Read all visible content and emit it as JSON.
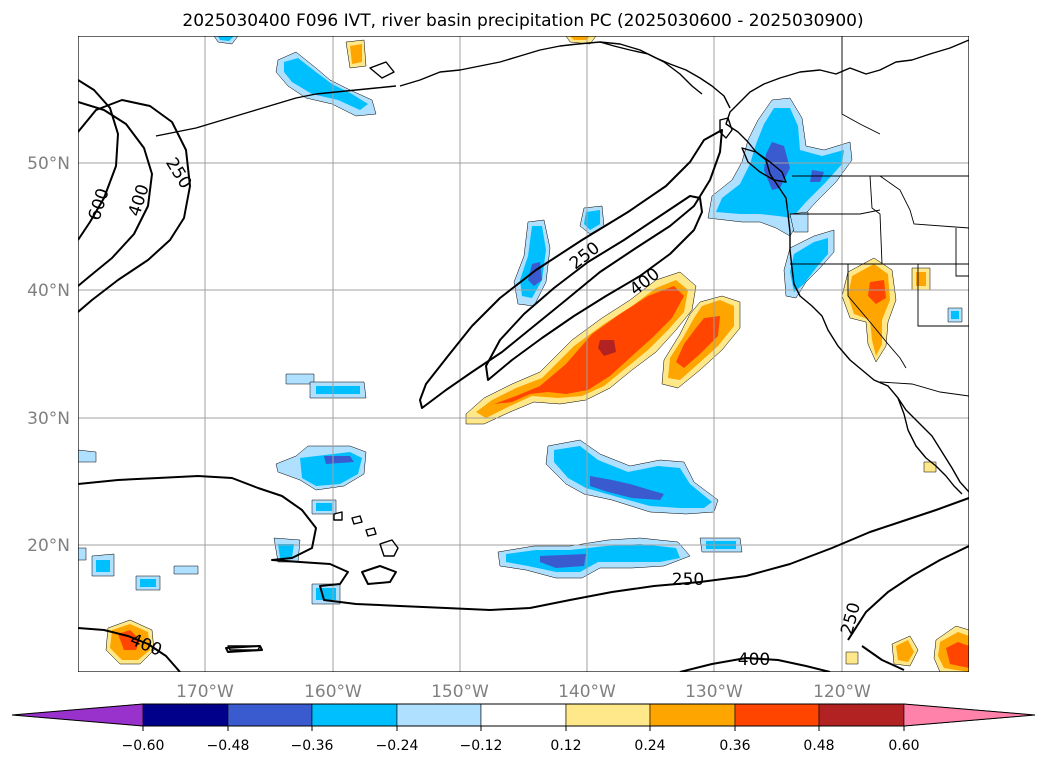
{
  "map": {
    "title": "2025030400 F096 IVT, river basin precipitation PC (2025030600 - 2025030900)",
    "lon_labels": [
      "170°W",
      "160°W",
      "150°W",
      "140°W",
      "130°W",
      "120°W"
    ],
    "lat_labels": [
      "50°N",
      "40°N",
      "30°N",
      "20°N"
    ],
    "ivt_contour_labels": [
      "250",
      "600",
      "400",
      "250",
      "400",
      "250",
      "400",
      "250",
      "400"
    ],
    "extent": {
      "lon_min": 178,
      "lon_max": 248,
      "lat_min": 10,
      "lat_max": 60
    }
  },
  "colorbar": {
    "ticks": [
      "−0.60",
      "−0.48",
      "−0.36",
      "−0.24",
      "−0.12",
      "0.12",
      "0.24",
      "0.36",
      "0.48",
      "0.60"
    ],
    "under_color": "#9932cc",
    "over_color": "#ff82aa",
    "colors": [
      "#00008b",
      "#3a5bd0",
      "#00bfff",
      "#b0e0ff",
      "#ffffff",
      "#ffe88a",
      "#ffa500",
      "#ff4500",
      "#b22222"
    ]
  },
  "palette": {
    "neg_light": "#b0e0ff",
    "neg_mid": "#00bfff",
    "neg_dark": "#3a5bd0",
    "pos_light": "#ffe88a",
    "pos_mid": "#ffa500",
    "pos_high": "#ff4500",
    "pos_max": "#b22222"
  }
}
